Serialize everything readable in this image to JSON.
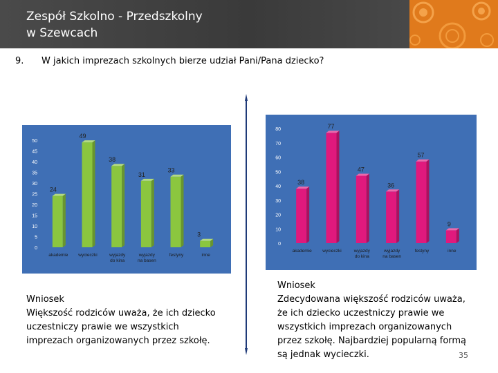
{
  "header": {
    "title_line1": "Zespół Szkolno - Przedszkolny",
    "title_line2": "w Szewcach"
  },
  "question": {
    "number": "9.",
    "text": "W jakich imprezach szkolnych bierze udział Pani/Pana dziecko?"
  },
  "colors": {
    "header_bg": "#454545",
    "deco": "#e07a1c",
    "chart_bg": "#3f6fb5",
    "divider": "#1f3a78",
    "green_bar": "#8bc63f",
    "magenta_bar": "#e0197d"
  },
  "chart_data": [
    {
      "type": "bar",
      "categories": [
        "akademie",
        "wycieczki",
        "wyjazdy do kina",
        "wyjazdy na basen",
        "festyny",
        "inne"
      ],
      "values": [
        24,
        49,
        38,
        31,
        33,
        3
      ],
      "ylim": [
        0,
        50
      ],
      "yticks": [
        0,
        5,
        10,
        15,
        20,
        25,
        30,
        35,
        40,
        45,
        50
      ],
      "grid": false,
      "bar_color": "#8bc63f"
    },
    {
      "type": "bar",
      "categories": [
        "akademie",
        "wycieczki",
        "wyjazdy do kina",
        "wyjazdy na basen",
        "festyny",
        "inne"
      ],
      "values": [
        38,
        77,
        47,
        36,
        57,
        9
      ],
      "ylim": [
        0,
        80
      ],
      "yticks": [
        0,
        10,
        20,
        30,
        40,
        50,
        60,
        70,
        80
      ],
      "grid": false,
      "bar_color": "#e0197d"
    }
  ],
  "wniosek_left": {
    "title": "Wniosek",
    "body": "Większość rodziców uważa, że ich dziecko uczestniczy prawie we  wszystkich imprezach organizowanych przez szkołę."
  },
  "wniosek_right": {
    "title": "Wniosek",
    "body": "Zdecydowana większość rodziców uważa, że ich dziecko uczestniczy prawie we wszystkich imprezach organizowanych przez szkołę. Najbardziej popularną formą są jednak wycieczki."
  },
  "page_number": "35"
}
